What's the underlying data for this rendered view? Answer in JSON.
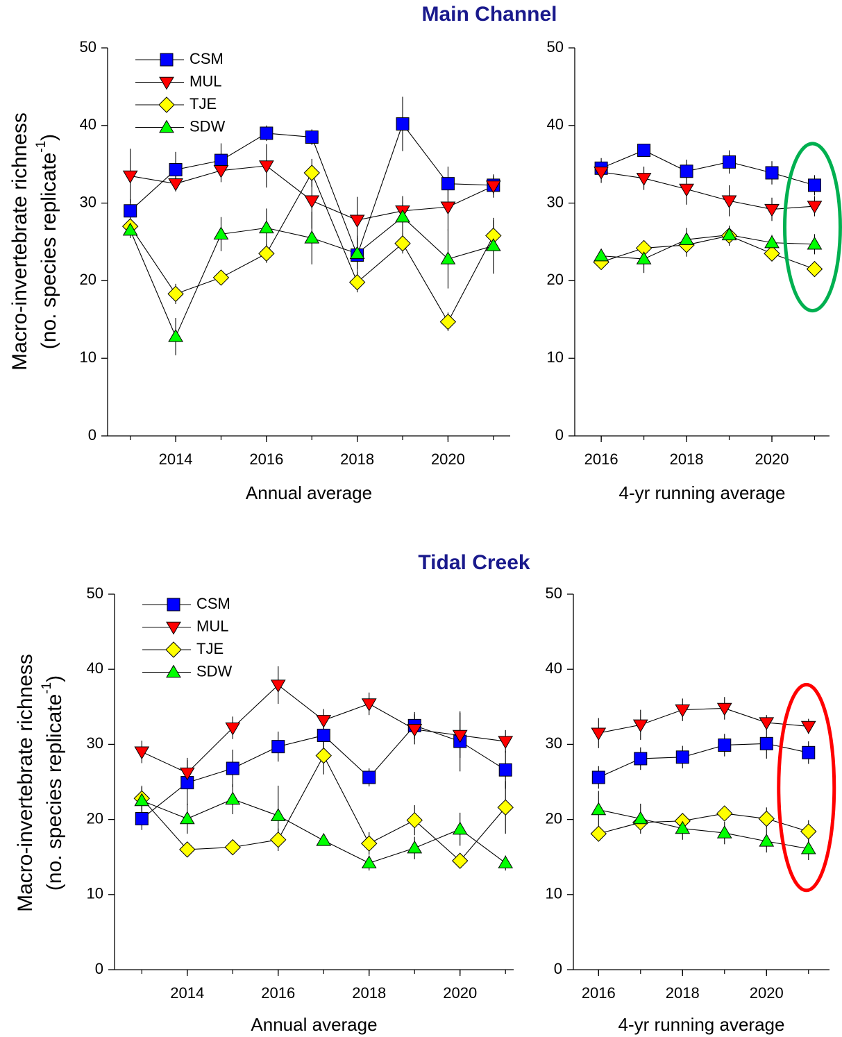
{
  "chart_data": [
    {
      "type": "line",
      "title": "Main Channel",
      "xlabel": "Annual average",
      "ylabel": {
        "line1": "Macro-invertebrate richness",
        "line2": "(no. species replicate",
        "superscript": "-1",
        "line2_end": ")"
      },
      "x": [
        2013,
        2014,
        2015,
        2016,
        2017,
        2018,
        2019,
        2020,
        2021
      ],
      "xlim": [
        2012.5,
        2021.37
      ],
      "xticks": [
        2014,
        2016,
        2018,
        2020
      ],
      "ylim": [
        0,
        50
      ],
      "yticks": [
        0,
        10,
        20,
        30,
        40,
        50
      ],
      "legend": "upper left",
      "series": [
        {
          "name": "CSM",
          "color": "#0000ff",
          "marker": "square",
          "values": [
            29,
            34.3,
            35.5,
            39,
            38.5,
            23.3,
            40.2,
            32.5,
            32.3
          ],
          "errors": [
            1.5,
            2.3,
            2.2,
            1,
            1,
            2.5,
            3.5,
            2.2,
            1.2
          ]
        },
        {
          "name": "MUL",
          "color": "#ff0000",
          "marker": "triangle-down",
          "values": [
            33.5,
            32.5,
            34.2,
            34.8,
            30.3,
            27.8,
            29,
            29.5,
            32.2
          ],
          "errors": [
            3.5,
            1,
            1.5,
            2.8,
            3.6,
            3,
            1.2,
            3,
            1.5
          ]
        },
        {
          "name": "TJE",
          "color": "#ffff00",
          "marker": "diamond",
          "values": [
            27,
            18.3,
            20.4,
            23.5,
            33.9,
            19.8,
            24.8,
            14.7,
            25.8
          ],
          "errors": [
            1,
            1.3,
            0.7,
            1.2,
            1.8,
            1.3,
            1.3,
            1.2,
            2
          ]
        },
        {
          "name": "SDW",
          "color": "#00ff00",
          "marker": "triangle-up",
          "values": [
            26.5,
            12.8,
            26,
            26.8,
            25.5,
            23.5,
            28.2,
            22.8,
            24.5
          ],
          "errors": [
            1,
            2.4,
            2.2,
            2.5,
            3.4,
            2,
            2.7,
            3.8,
            3.6
          ]
        }
      ]
    },
    {
      "type": "line",
      "xlabel": "4-yr running average",
      "x": [
        2016,
        2017,
        2018,
        2019,
        2020,
        2021
      ],
      "xlim": [
        2015.38,
        2021.35
      ],
      "xticks": [
        2016,
        2018,
        2020
      ],
      "ylim": [
        0,
        50
      ],
      "yticks": [
        0,
        10,
        20,
        30,
        40,
        50
      ],
      "highlight_color": "#00b050",
      "series": [
        {
          "name": "CSM",
          "color": "#0000ff",
          "marker": "square",
          "values": [
            34.5,
            36.8,
            34.1,
            35.3,
            33.9,
            32.3
          ],
          "errors": [
            1.3,
            0.8,
            1.5,
            1.5,
            1.5,
            1.3
          ]
        },
        {
          "name": "MUL",
          "color": "#ff0000",
          "marker": "triangle-down",
          "values": [
            34,
            33.2,
            31.8,
            30.3,
            29.2,
            29.6
          ],
          "errors": [
            1.4,
            1.5,
            2,
            2,
            1.5,
            1.3
          ]
        },
        {
          "name": "TJE",
          "color": "#ffff00",
          "marker": "diamond",
          "values": [
            22.4,
            24.2,
            24.6,
            25.8,
            23.5,
            21.5
          ],
          "errors": [
            0.8,
            1,
            1.5,
            1.3,
            1,
            0.8
          ]
        },
        {
          "name": "SDW",
          "color": "#00ff00",
          "marker": "triangle-up",
          "values": [
            23.2,
            22.8,
            25.3,
            25.9,
            24.9,
            24.7
          ],
          "errors": [
            0.8,
            1.8,
            1.5,
            1,
            1,
            1.3
          ]
        }
      ]
    },
    {
      "type": "line",
      "title": "Tidal Creek",
      "xlabel": "Annual average",
      "ylabel": {
        "line1": "Macro-invertebrate richness",
        "line2": "(no. species replicate",
        "superscript": "-1",
        "line2_end": ")"
      },
      "x": [
        2013,
        2014,
        2015,
        2016,
        2017,
        2018,
        2019,
        2020,
        2021
      ],
      "xlim": [
        2012.4,
        2021.18
      ],
      "xticks": [
        2014,
        2016,
        2018,
        2020
      ],
      "ylim": [
        0,
        50
      ],
      "yticks": [
        0,
        10,
        20,
        30,
        40,
        50
      ],
      "legend": "upper left",
      "series": [
        {
          "name": "CSM",
          "color": "#0000ff",
          "marker": "square",
          "values": [
            20.1,
            24.9,
            26.8,
            29.7,
            31.2,
            25.6,
            32.5,
            30.4,
            26.6
          ],
          "errors": [
            1.5,
            3,
            2.5,
            2,
            2.5,
            1.2,
            1.8,
            4,
            2.5
          ]
        },
        {
          "name": "MUL",
          "color": "#ff0000",
          "marker": "triangle-down",
          "values": [
            29,
            26.2,
            32.2,
            37.9,
            33.2,
            35.4,
            32,
            31.2,
            30.4
          ],
          "errors": [
            1.5,
            2,
            1.5,
            2.5,
            1.5,
            1.5,
            2,
            3,
            1.5
          ]
        },
        {
          "name": "TJE",
          "color": "#ffff00",
          "marker": "diamond",
          "values": [
            22.8,
            16,
            16.3,
            17.3,
            28.5,
            16.8,
            19.9,
            14.5,
            21.6
          ],
          "errors": [
            1.5,
            1,
            0.7,
            1.5,
            2.5,
            1.5,
            2,
            1,
            3.5
          ]
        },
        {
          "name": "SDW",
          "color": "#00ff00",
          "marker": "triangle-up",
          "values": [
            22.5,
            20.1,
            22.7,
            20.5,
            17.2,
            14.2,
            16.2,
            18.7,
            14.2
          ],
          "errors": [
            2,
            2,
            2,
            4,
            0.7,
            1,
            1.5,
            2.2,
            1
          ]
        }
      ]
    },
    {
      "type": "line",
      "xlabel": "4-yr running average",
      "x": [
        2016,
        2017,
        2018,
        2019,
        2020,
        2021
      ],
      "xlim": [
        2015.4,
        2021.5
      ],
      "xticks": [
        2016,
        2018,
        2020
      ],
      "ylim": [
        0,
        50
      ],
      "yticks": [
        0,
        10,
        20,
        30,
        40,
        50
      ],
      "highlight_color": "#ff0000",
      "series": [
        {
          "name": "CSM",
          "color": "#0000ff",
          "marker": "square",
          "values": [
            25.6,
            28.1,
            28.3,
            29.9,
            30.1,
            28.9
          ],
          "errors": [
            1.5,
            1.5,
            1.5,
            1.5,
            2,
            1.5
          ]
        },
        {
          "name": "MUL",
          "color": "#ff0000",
          "marker": "triangle-down",
          "values": [
            31.5,
            32.6,
            34.6,
            34.8,
            32.9,
            32.4
          ],
          "errors": [
            2,
            2,
            1.5,
            1.5,
            1,
            1
          ]
        },
        {
          "name": "TJE",
          "color": "#ffff00",
          "marker": "diamond",
          "values": [
            18.1,
            19.6,
            19.8,
            20.8,
            20.1,
            18.4
          ],
          "errors": [
            0.7,
            1,
            1,
            1,
            1.5,
            1.5
          ]
        },
        {
          "name": "SDW",
          "color": "#00ff00",
          "marker": "triangle-up",
          "values": [
            21.3,
            20.1,
            18.8,
            18.2,
            17.1,
            16.1
          ],
          "errors": [
            2.5,
            2,
            1.5,
            1.5,
            1.5,
            1.5
          ]
        }
      ]
    }
  ]
}
